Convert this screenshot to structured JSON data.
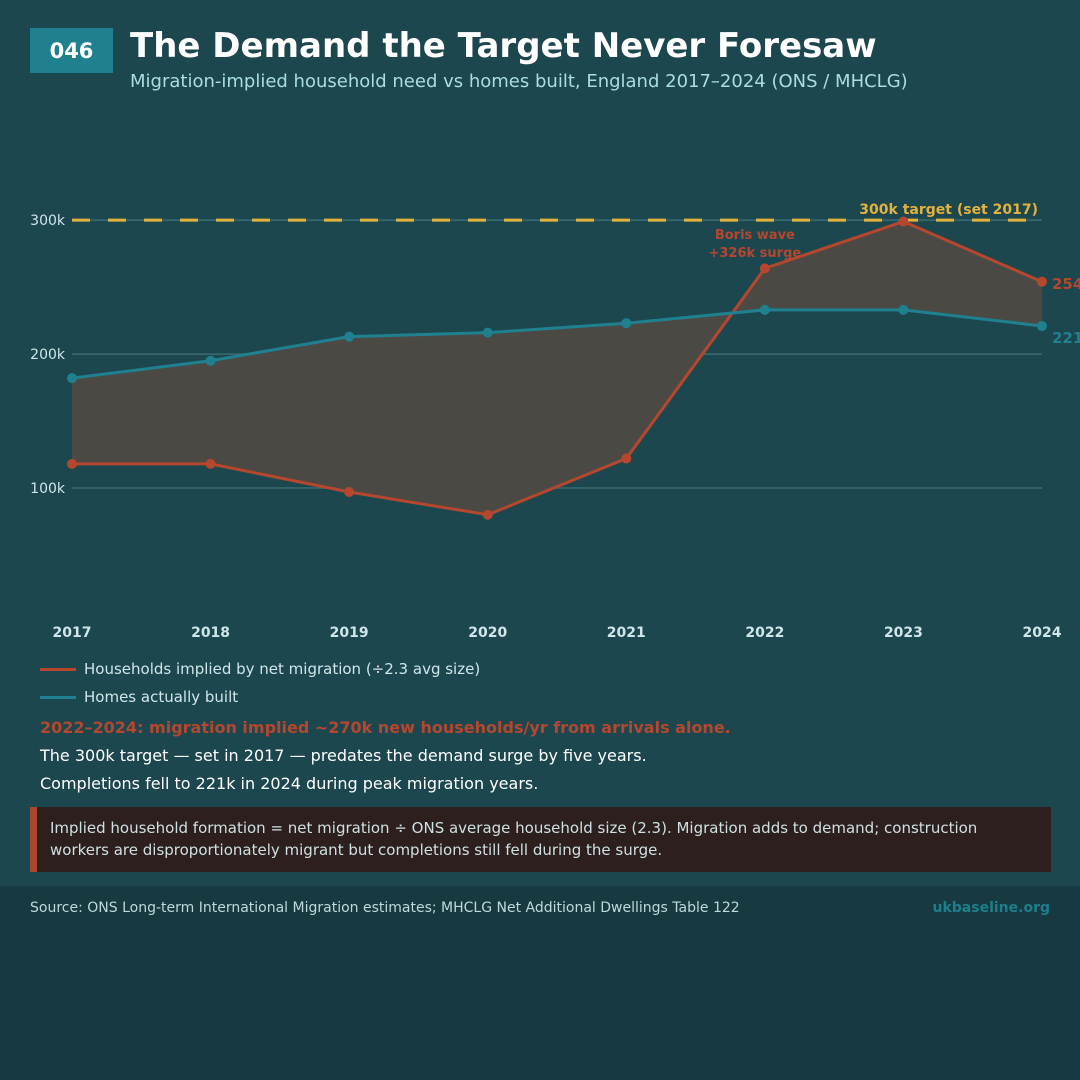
{
  "badge": "046",
  "title": "The Demand the Target Never Foresaw",
  "subtitle": "Migration-implied household need vs homes built, England 2017–2024 (ONS / MHCLG)",
  "chart_data": {
    "type": "line",
    "x": [
      "2017",
      "2018",
      "2019",
      "2020",
      "2021",
      "2022",
      "2023",
      "2024"
    ],
    "series": [
      {
        "name": "Households implied by net migration (÷2.3 avg size)",
        "values": [
          118,
          118,
          97,
          80,
          122,
          264,
          299,
          254
        ],
        "color": "#b5472e"
      },
      {
        "name": "Homes actually built",
        "values": [
          182,
          195,
          213,
          216,
          223,
          233,
          233,
          221
        ],
        "color": "#1f8090"
      }
    ],
    "units": "thousands",
    "ylim": [
      35,
      330
    ],
    "yticks": [
      100,
      200,
      300
    ],
    "ytick_labels": [
      "100k",
      "200k",
      "300k"
    ],
    "target": {
      "value": 300,
      "label": "300k target (set 2017)",
      "color": "#e2b23c"
    },
    "annotation": {
      "lines": [
        "Boris wave",
        "+326k surge"
      ],
      "x": "2022"
    },
    "end_labels": [
      "254",
      "221"
    ],
    "grid": true,
    "gap_fill_color": "#4a4944",
    "legend_position": "below"
  },
  "summary": {
    "lead": "2022–2024: migration implied ~270k new households/yr from arrivals alone.",
    "line1": "The 300k target — set in 2017 — predates the demand surge by five years.",
    "line2": "Completions fell to 221k in 2024 during peak migration years."
  },
  "note": "Implied household formation = net migration ÷ ONS average household size (2.3). Migration adds to demand; construction workers are disproportionately migrant but completions still fell during the surge.",
  "footer": {
    "source": "Source: ONS Long-term International Migration estimates; MHCLG Net Additional Dwellings Table 122",
    "site": "ukbaseline.org"
  }
}
